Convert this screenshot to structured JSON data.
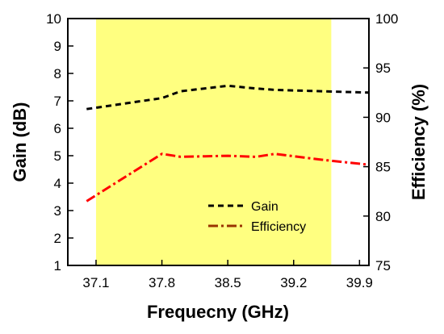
{
  "chart_data": {
    "type": "line",
    "xlabel": "Frequecny (GHz)",
    "ylabel_left": "Gain (dB)",
    "ylabel_right": "Efficiency (%)",
    "xlim": [
      36.8,
      40.0
    ],
    "ylim_left": [
      1,
      10
    ],
    "ylim_right": [
      75,
      100
    ],
    "x_ticks": [
      "37.1",
      "37.8",
      "38.5",
      "39.2",
      "39.9"
    ],
    "y_left_ticks": [
      "1",
      "2",
      "3",
      "4",
      "5",
      "6",
      "7",
      "8",
      "9",
      "10"
    ],
    "y_right_ticks": [
      "75",
      "80",
      "85",
      "90",
      "95",
      "100"
    ],
    "highlight_band": {
      "x_start": 37.1,
      "x_end": 39.6,
      "color": "#ffff80"
    },
    "legend_position": "center-right",
    "series": [
      {
        "name": "Gain",
        "axis": "left",
        "color": "#000000",
        "style": "dash",
        "x": [
          37.0,
          37.8,
          38.0,
          38.5,
          38.8,
          39.0,
          39.5,
          40.0
        ],
        "y": [
          6.7,
          7.1,
          7.35,
          7.55,
          7.45,
          7.4,
          7.35,
          7.3
        ]
      },
      {
        "name": "Efficiency",
        "axis": "right",
        "color": "#ff0000",
        "legend_color": "#993300",
        "style": "dashdot",
        "x": [
          37.0,
          37.8,
          38.0,
          38.5,
          38.8,
          39.0,
          39.5,
          40.0
        ],
        "y": [
          81.5,
          86.3,
          86.0,
          86.1,
          86.0,
          86.3,
          85.7,
          85.2
        ]
      }
    ]
  }
}
